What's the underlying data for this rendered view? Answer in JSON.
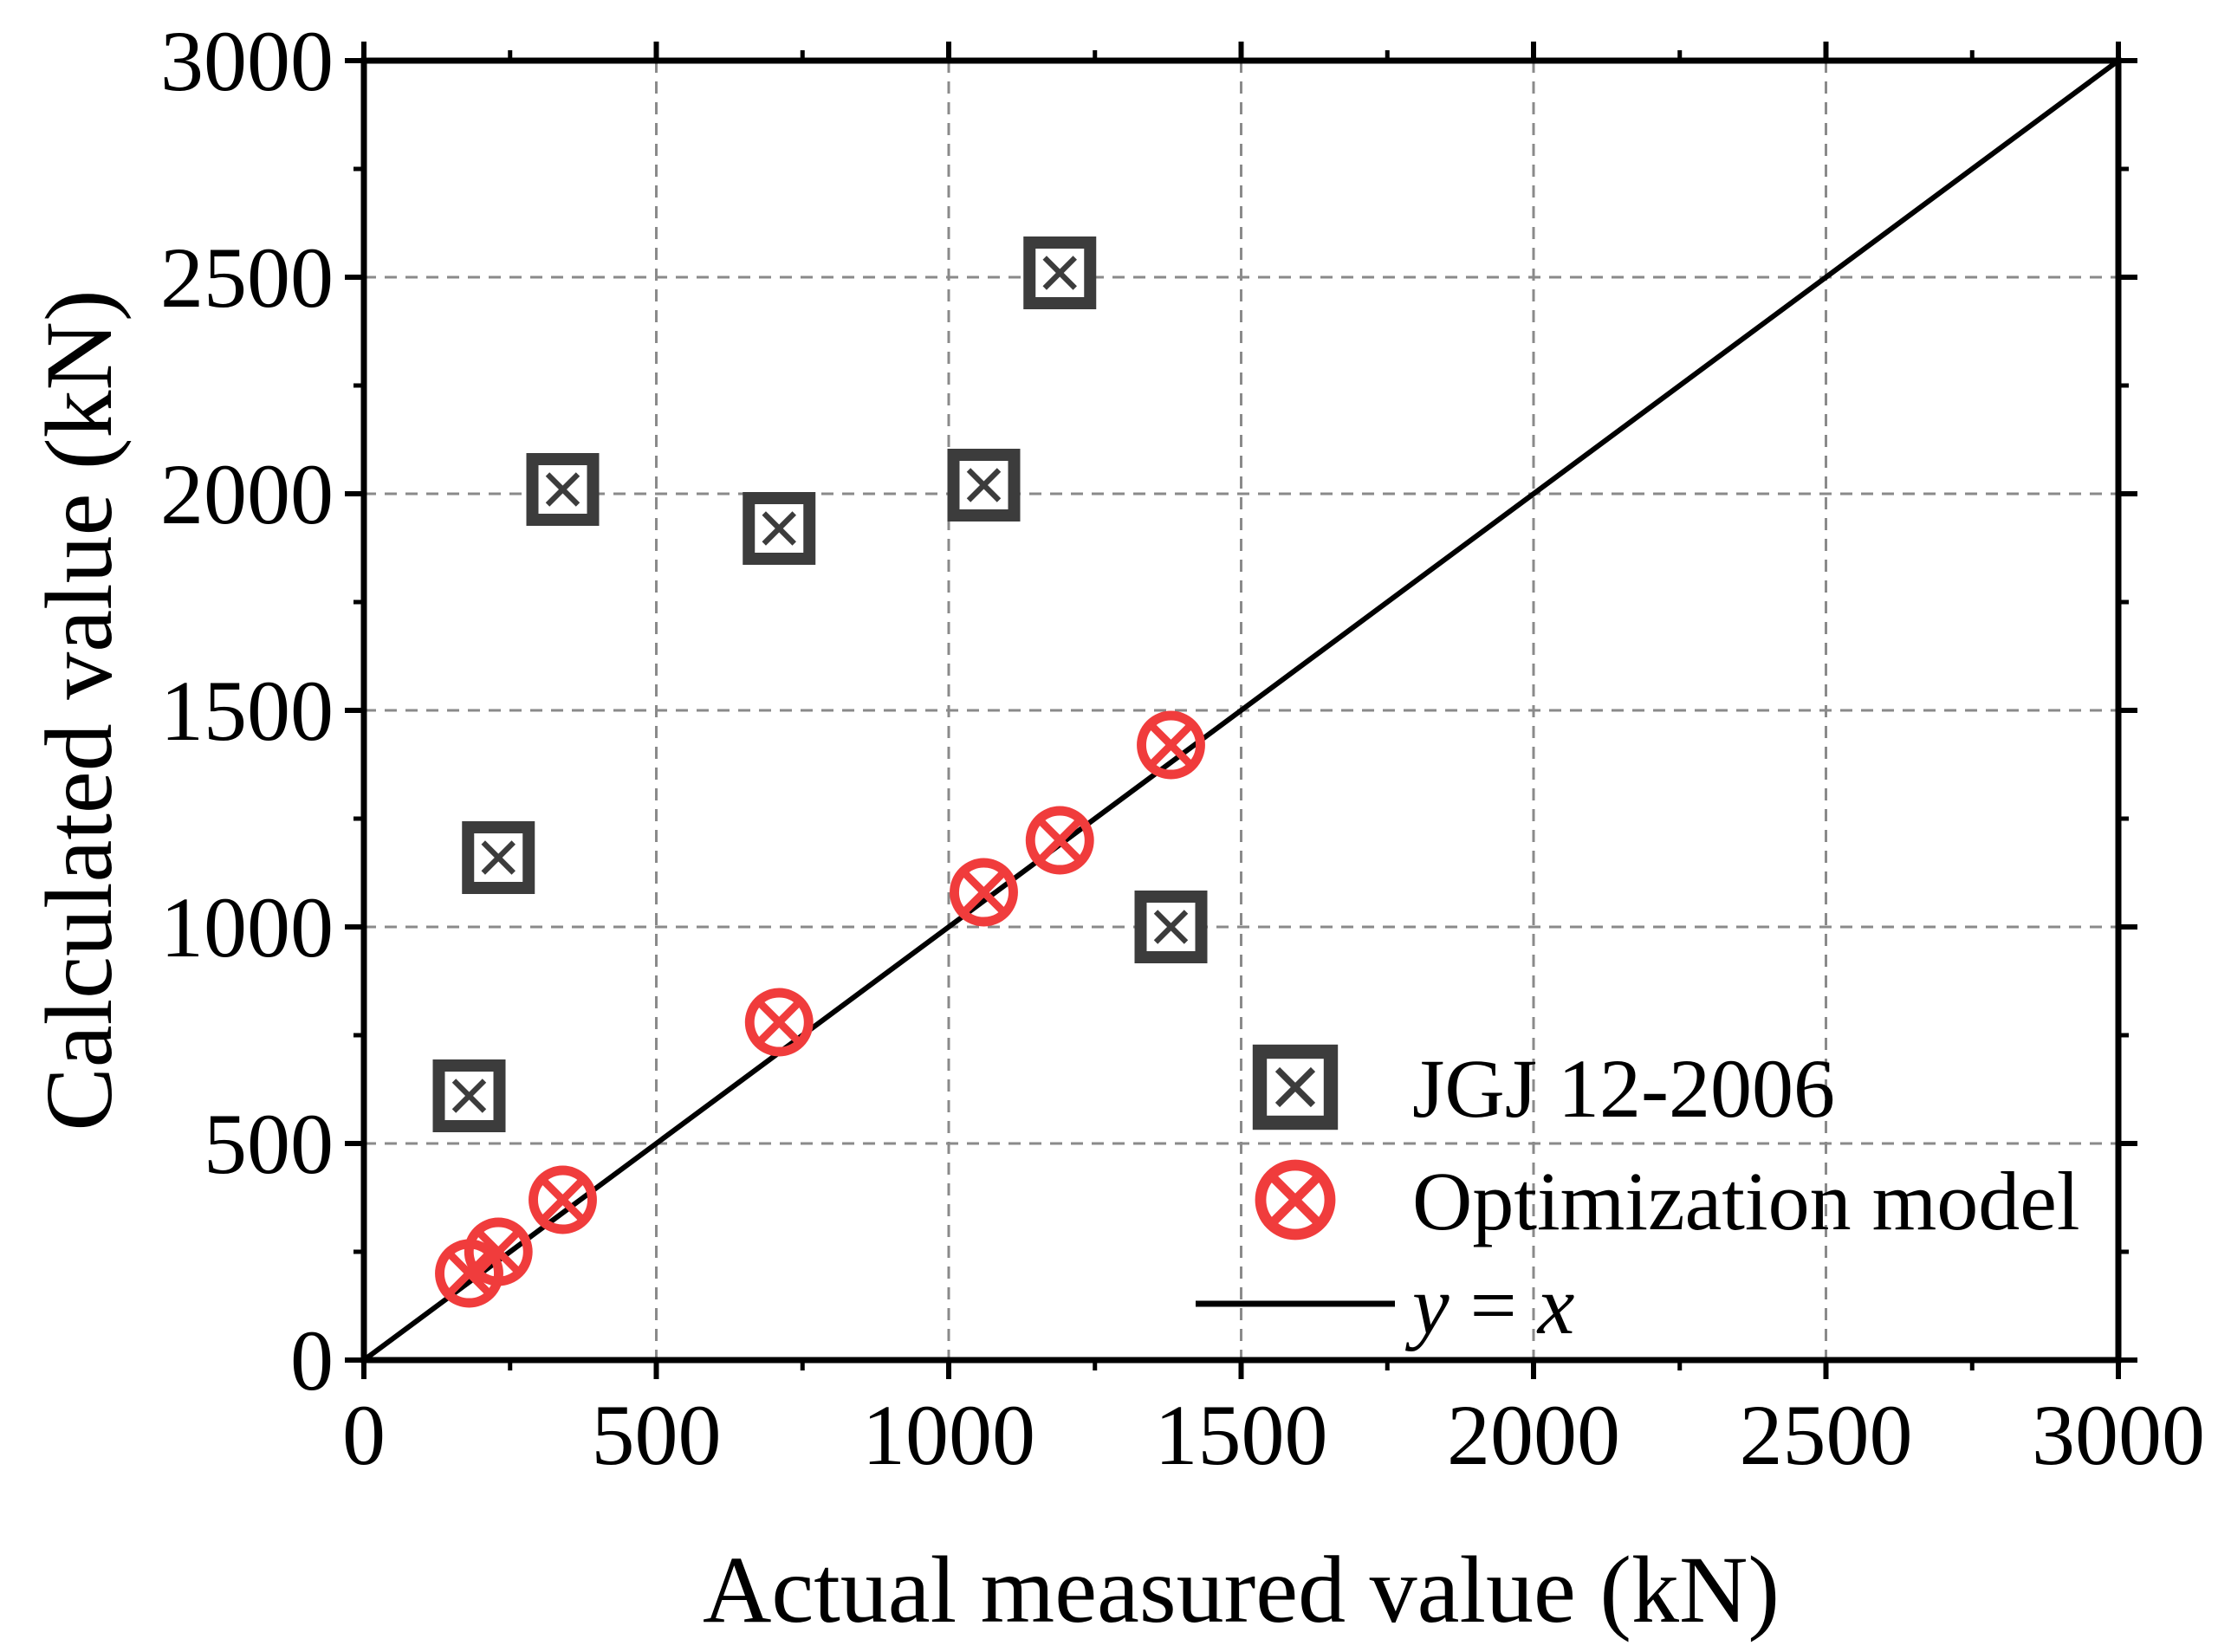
{
  "chart_data": {
    "type": "scatter",
    "xlabel": "Actual measured value (kN)",
    "ylabel": "Calculated value (kN)",
    "xlim": [
      0,
      3000
    ],
    "ylim": [
      0,
      3000
    ],
    "xticks": [
      0,
      500,
      1000,
      1500,
      2000,
      2500,
      3000
    ],
    "yticks": [
      0,
      500,
      1000,
      1500,
      2000,
      2500,
      3000
    ],
    "xtick_labels": [
      "0",
      "500",
      "1000",
      "1500",
      "2000",
      "2500",
      "3000"
    ],
    "ytick_labels": [
      "0",
      "500",
      "1000",
      "1500",
      "2000",
      "2500",
      "3000"
    ],
    "grid": true,
    "legend_position": "bottom-right",
    "series": [
      {
        "name": "JGJ 12-2006",
        "marker": "square-x",
        "color": "#3c3c3c",
        "x": [
          180,
          230,
          340,
          710,
          1060,
          1190,
          1380
        ],
        "y": [
          610,
          1160,
          2010,
          1920,
          2020,
          2510,
          1000
        ]
      },
      {
        "name": "Optimization model",
        "marker": "circle-x",
        "color": "#f03c3c",
        "x": [
          180,
          230,
          340,
          710,
          1060,
          1190,
          1380
        ],
        "y": [
          200,
          250,
          370,
          780,
          1080,
          1200,
          1420
        ]
      },
      {
        "name_prefix": "y",
        "name_eq": " = ",
        "name_suffix": "x",
        "marker": "line",
        "color": "#000000",
        "x": [
          0,
          3000
        ],
        "y": [
          0,
          3000
        ]
      }
    ]
  }
}
